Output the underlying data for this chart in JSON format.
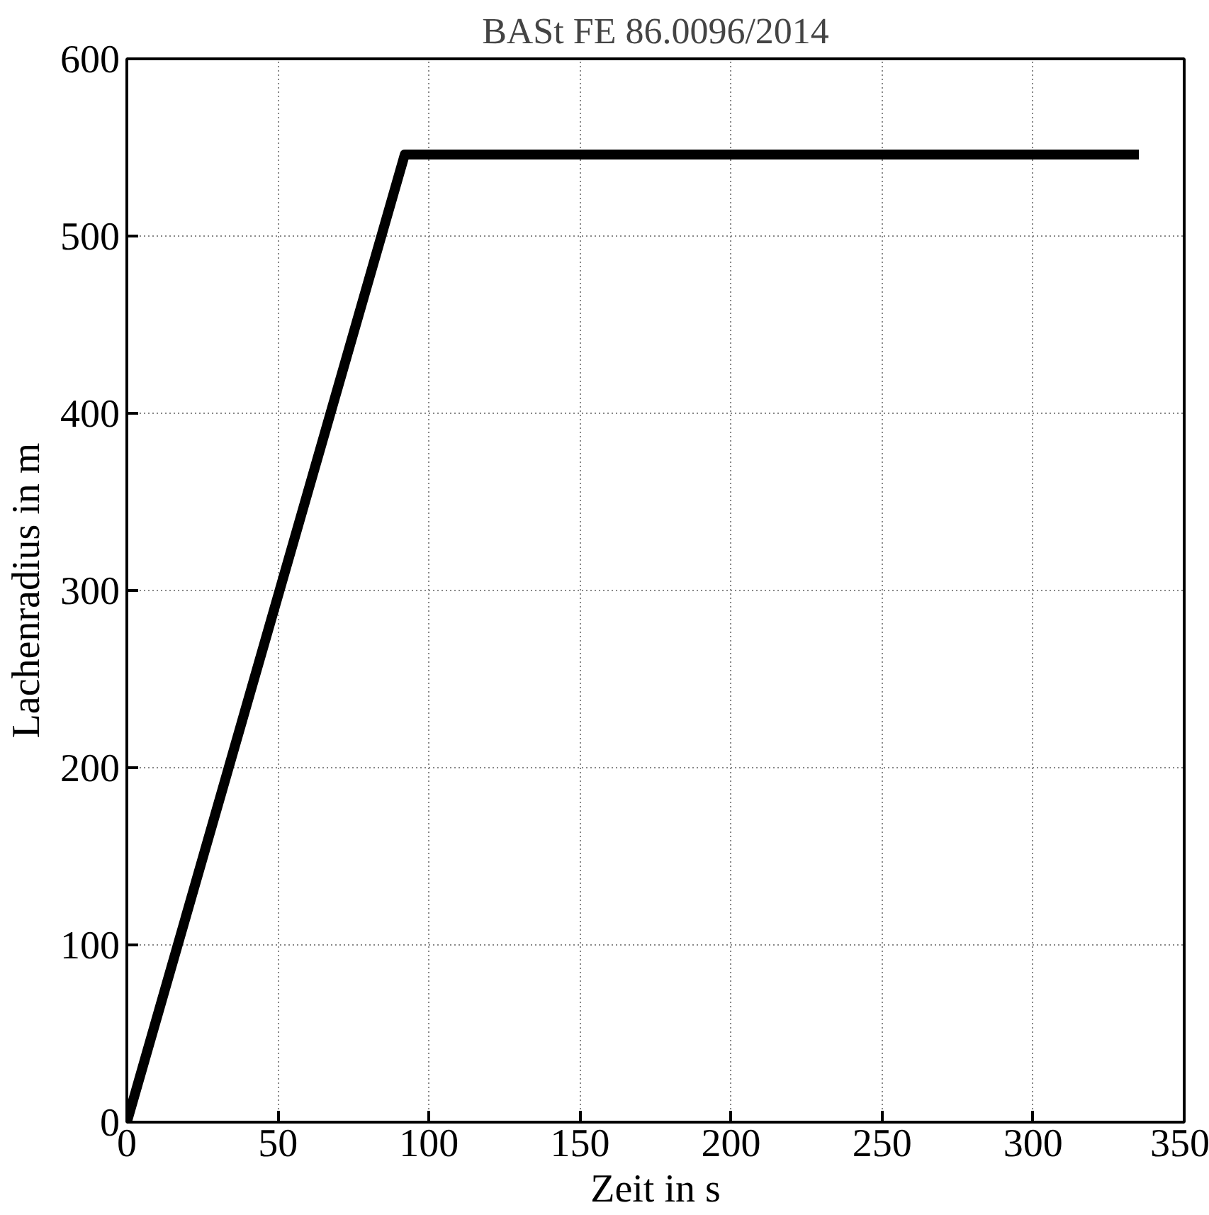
{
  "chart_data": {
    "type": "line",
    "title": "BASt FE 86.0096/2014",
    "xlabel": "Zeit in s",
    "ylabel": "Lachenradius in m",
    "x": [
      0,
      92,
      335
    ],
    "series": [
      {
        "color": "#000000",
        "values": [
          0,
          546,
          546
        ]
      }
    ],
    "xlim": [
      0,
      350
    ],
    "xticks": [
      0,
      50,
      100,
      150,
      200,
      250,
      300,
      350
    ],
    "ylim": [
      0,
      600
    ],
    "yticks": [
      0,
      100,
      200,
      300,
      400,
      500,
      600
    ],
    "grid": true,
    "marker": "none",
    "line_style": "solid"
  }
}
